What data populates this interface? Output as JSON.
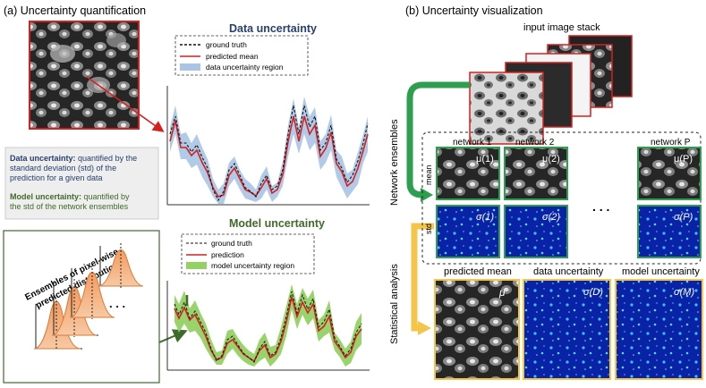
{
  "panel_a": {
    "title": "(a) Uncertainty quantification",
    "data_plot": {
      "title": "Data uncertainty",
      "legend": [
        "ground truth",
        "predicted mean",
        "data uncertainty region"
      ]
    },
    "info_box": {
      "line1_bold": "Data uncertainty:",
      "line1_rest": " quantified by the",
      "line2": "standard deviation (std) of the",
      "line3": "prediction for a given data",
      "line4_bold": "Model uncertainty:",
      "line4_rest": " quantified by",
      "line5": "the std of the network ensembles"
    },
    "ensemble_label_1": "Ensembles of pixel-wise",
    "ensemble_label_2": "predicted distribution",
    "ellipsis": ". . .",
    "model_plot": {
      "title": "Model uncertainty",
      "legend": [
        "ground truth",
        "prediction",
        "model uncertainty region"
      ]
    }
  },
  "panel_b": {
    "title": "(b) Uncertainty visualization",
    "input_stack_label": "input image stack",
    "network_ensembles_label": "Network ensembles",
    "statistical_analysis_label": "Statistical analysis",
    "row_mean": "mean",
    "row_std": "std",
    "ellipsis": ". . .",
    "networks": [
      {
        "name": "network 1",
        "mu": "μ(1)",
        "sigma": "σ(1)"
      },
      {
        "name": "network 2",
        "mu": "μ(2)",
        "sigma": "σ(2)"
      },
      {
        "name": "network P",
        "mu": "μ(P)",
        "sigma": "σ(P)"
      }
    ],
    "outputs": [
      {
        "name": "predicted mean",
        "symbol": "μ̂"
      },
      {
        "name": "data uncertainty",
        "symbol": "σ(D)"
      },
      {
        "name": "model uncertainty",
        "symbol": "σ(M)"
      }
    ]
  },
  "colors": {
    "red": "#d42020",
    "green": "#2e9e4f",
    "orange": "#f5c54a",
    "dark_green": "#3f6a2a",
    "navy": "#27406e",
    "light_blue": "#a9c4e4",
    "light_green": "#93d164"
  }
}
